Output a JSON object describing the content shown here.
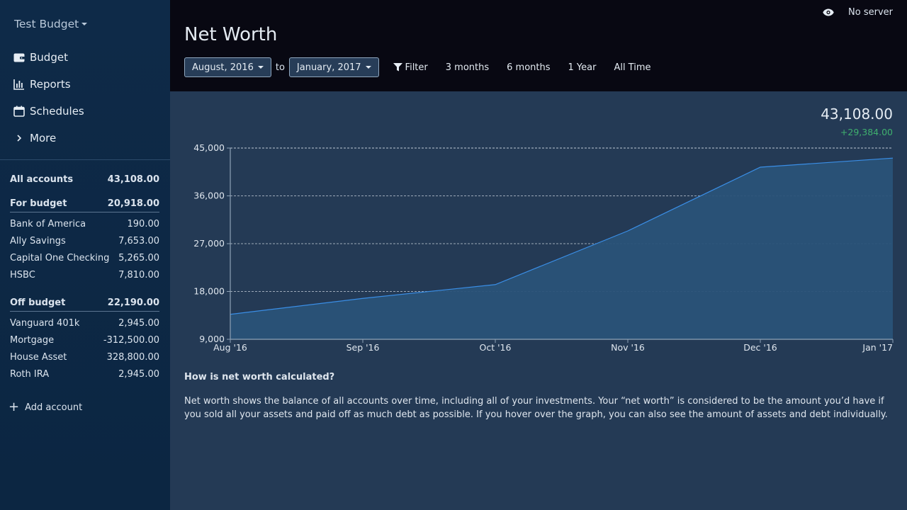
{
  "sidebar": {
    "budget_name": "Test Budget",
    "nav": [
      {
        "label": "Budget",
        "icon": "wallet-icon"
      },
      {
        "label": "Reports",
        "icon": "bar-chart-icon"
      },
      {
        "label": "Schedules",
        "icon": "calendar-icon"
      },
      {
        "label": "More",
        "icon": "chevron-right-icon"
      }
    ],
    "all_accounts": {
      "label": "All accounts",
      "value": "43,108.00"
    },
    "for_budget": {
      "label": "For budget",
      "value": "20,918.00",
      "accounts": [
        {
          "name": "Bank of America",
          "balance": "190.00"
        },
        {
          "name": "Ally Savings",
          "balance": "7,653.00"
        },
        {
          "name": "Capital One Checking",
          "balance": "5,265.00"
        },
        {
          "name": "HSBC",
          "balance": "7,810.00"
        }
      ]
    },
    "off_budget": {
      "label": "Off budget",
      "value": "22,190.00",
      "accounts": [
        {
          "name": "Vanguard 401k",
          "balance": "2,945.00"
        },
        {
          "name": "Mortgage",
          "balance": "-312,500.00"
        },
        {
          "name": "House Asset",
          "balance": "328,800.00"
        },
        {
          "name": "Roth IRA",
          "balance": "2,945.00"
        }
      ]
    },
    "add_account": "Add account"
  },
  "header": {
    "server_status": "No server",
    "title": "Net Worth",
    "start_date": "August, 2016",
    "to_label": "to",
    "end_date": "January, 2017",
    "filter_label": "Filter",
    "ranges": [
      "3 months",
      "6 months",
      "1 Year",
      "All Time"
    ]
  },
  "summary": {
    "total": "43,108.00",
    "change": "+29,384.00",
    "change_color": "#3fb06e"
  },
  "chart_data": {
    "type": "area",
    "categories": [
      "Aug '16",
      "Sep '16",
      "Oct '16",
      "Nov '16",
      "Dec '16",
      "Jan '17"
    ],
    "values": [
      13700,
      16700,
      19300,
      29400,
      41400,
      43108
    ],
    "y_ticks": [
      "9,000",
      "18,000",
      "27,000",
      "36,000",
      "45,000"
    ],
    "ylim": [
      9000,
      45000
    ],
    "grid": true,
    "line_color": "#3a8ee6",
    "fill_color": "#2a5278"
  },
  "explanation": {
    "heading": "How is net worth calculated?",
    "body": "Net worth shows the balance of all accounts over time, including all of your investments. Your “net worth” is considered to be the amount you’d have if you sold all your assets and paid off as much debt as possible. If you hover over the graph, you can also see the amount of assets and debt individually."
  }
}
